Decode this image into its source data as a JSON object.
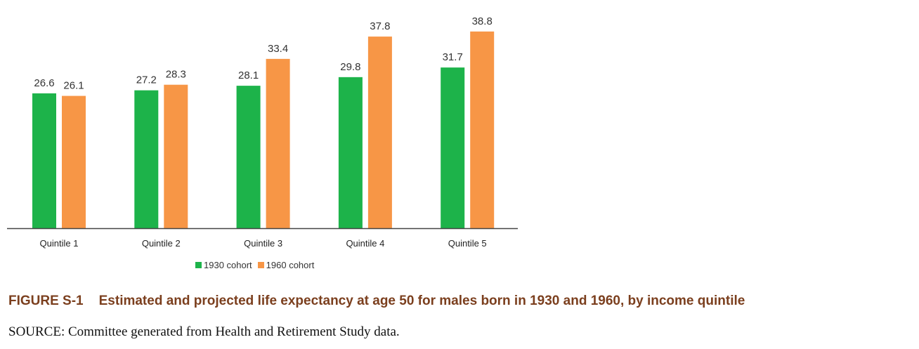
{
  "chart_data": {
    "type": "bar",
    "categories": [
      "Quintile 1",
      "Quintile 2",
      "Quintile 3",
      "Quintile 4",
      "Quintile 5"
    ],
    "series": [
      {
        "name": "1930 cohort",
        "values": [
          26.6,
          27.2,
          28.1,
          29.8,
          31.7
        ],
        "color": "#1db34a"
      },
      {
        "name": "1960 cohort",
        "values": [
          26.1,
          28.3,
          33.4,
          37.8,
          38.8
        ],
        "color": "#f79646"
      }
    ],
    "ylim": [
      0,
      40
    ],
    "grid": false,
    "legend": "bottom",
    "title_number": "FIGURE S-1",
    "title": "Estimated and projected life expectancy at age 50 for males born in 1930 and 1960, by income quintile",
    "source": "SOURCE: Committee generated from Health and Retirement Study data.",
    "label_labels": [
      "26.6",
      "26.1",
      "27.2",
      "28.3",
      "28.1",
      "33.4",
      "29.8",
      "37.8",
      "31.7",
      "38.8"
    ]
  }
}
